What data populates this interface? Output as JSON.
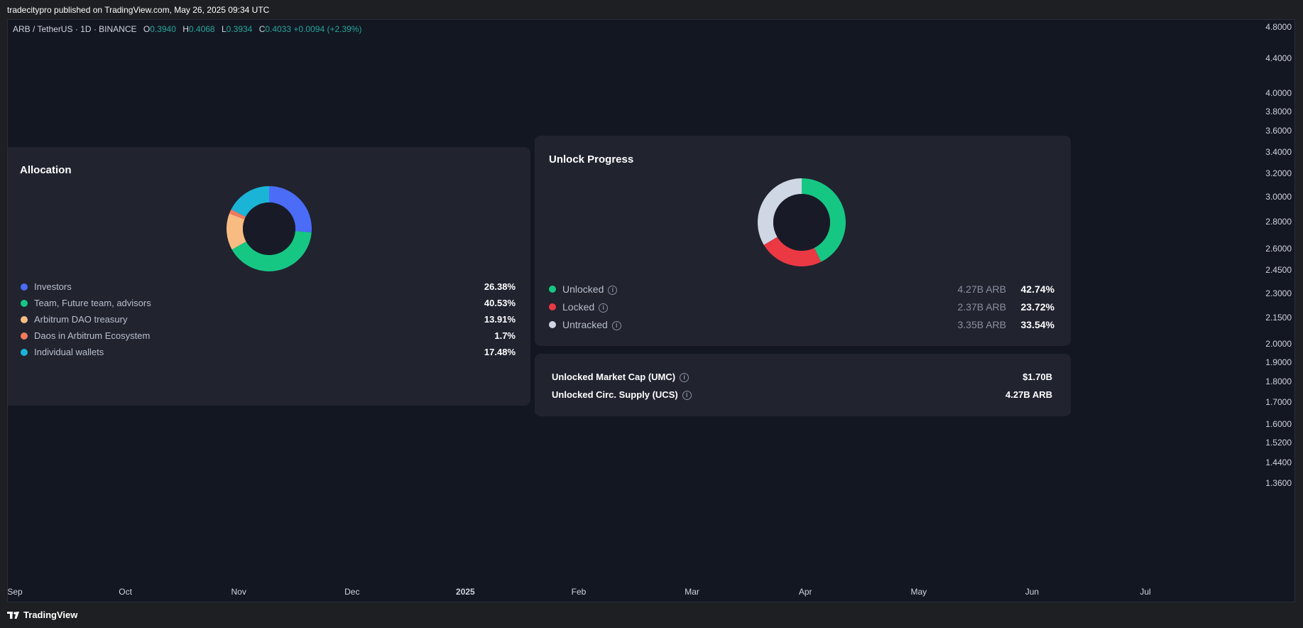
{
  "header": {
    "publisher_line": "tradecitypro published on TradingView.com, May 26, 2025 09:34 UTC"
  },
  "symbol": {
    "name": "ARB / TetherUS · 1D · BINANCE",
    "open_key": "O",
    "open": "0.3940",
    "high_key": "H",
    "high": "0.4068",
    "low_key": "L",
    "low": "0.3934",
    "close_key": "C",
    "close": "0.4033",
    "change": "+0.0094 (+2.39%)"
  },
  "price_axis": {
    "scale": "log",
    "ticks": [
      "4.8000",
      "4.4000",
      "4.0000",
      "3.8000",
      "3.6000",
      "3.4000",
      "3.2000",
      "3.0000",
      "2.8000",
      "2.6000",
      "2.4500",
      "2.3000",
      "2.1500",
      "2.0000",
      "1.9000",
      "1.8000",
      "1.7000",
      "1.6000",
      "1.5200",
      "1.4400",
      "1.3600"
    ]
  },
  "time_axis": {
    "ticks": [
      {
        "label": "Sep",
        "bold": false
      },
      {
        "label": "Oct",
        "bold": false
      },
      {
        "label": "Nov",
        "bold": false
      },
      {
        "label": "Dec",
        "bold": false
      },
      {
        "label": "2025",
        "bold": true
      },
      {
        "label": "Feb",
        "bold": false
      },
      {
        "label": "Mar",
        "bold": false
      },
      {
        "label": "Apr",
        "bold": false
      },
      {
        "label": "May",
        "bold": false
      },
      {
        "label": "Jun",
        "bold": false
      },
      {
        "label": "Jul",
        "bold": false
      }
    ]
  },
  "chart_data": [
    {
      "type": "pie",
      "title": "Allocation",
      "donut": true,
      "categories": [
        "Investors",
        "Team, Future team, advisors",
        "Arbitrum DAO treasury",
        "Daos in Arbitrum Ecosystem",
        "Individual wallets"
      ],
      "values": [
        26.38,
        40.53,
        13.91,
        1.7,
        17.48
      ],
      "labels": [
        "26.38%",
        "40.53%",
        "13.91%",
        "1.7%",
        "17.48%"
      ],
      "colors": [
        "#4a6cf7",
        "#16c784",
        "#f8bc83",
        "#f07b5e",
        "#1ab4d6"
      ]
    },
    {
      "type": "pie",
      "title": "Unlock Progress",
      "donut": true,
      "categories": [
        "Unlocked",
        "Locked",
        "Untracked"
      ],
      "values": [
        42.74,
        23.72,
        33.54
      ],
      "labels": [
        "42.74%",
        "23.72%",
        "33.54%"
      ],
      "amounts": [
        "4.27B ARB",
        "2.37B ARB",
        "3.35B ARB"
      ],
      "colors": [
        "#16c784",
        "#ea3943",
        "#cfd6e4"
      ]
    }
  ],
  "metrics": [
    {
      "label": "Unlocked Market Cap (UMC)",
      "value": "$1.70B"
    },
    {
      "label": "Unlocked Circ. Supply (UCS)",
      "value": "4.27B ARB"
    }
  ],
  "footer": {
    "brand": "TradingView"
  }
}
